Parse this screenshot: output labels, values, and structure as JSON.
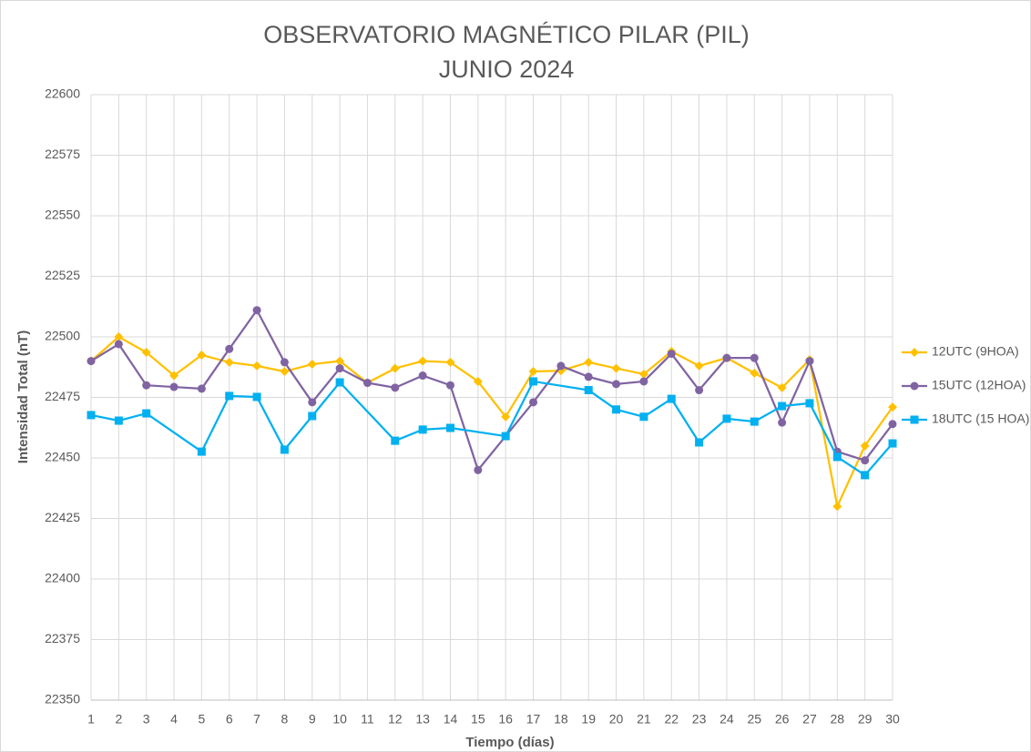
{
  "chart_data": {
    "type": "line",
    "title": "OBSERVATORIO MAGNÉTICO PILAR (PIL)",
    "subtitle": "JUNIO 2024",
    "x_label": "Tiempo (días)",
    "y_label": "Intensidad Total (nT)",
    "x": [
      1,
      2,
      3,
      4,
      5,
      6,
      7,
      8,
      9,
      10,
      11,
      12,
      13,
      14,
      15,
      16,
      17,
      18,
      19,
      20,
      21,
      22,
      23,
      24,
      25,
      26,
      27,
      28,
      29,
      30
    ],
    "xlim": [
      1,
      30
    ],
    "xticks": [
      1,
      2,
      3,
      4,
      5,
      6,
      7,
      8,
      9,
      10,
      11,
      12,
      13,
      14,
      15,
      16,
      17,
      18,
      19,
      20,
      21,
      22,
      23,
      24,
      25,
      26,
      27,
      28,
      29,
      30
    ],
    "ylim": [
      22350,
      22600
    ],
    "yticks": [
      22350,
      22375,
      22400,
      22425,
      22450,
      22475,
      22500,
      22525,
      22550,
      22575,
      22600
    ],
    "grid": true,
    "legend": "right",
    "series": [
      {
        "name": "12UTC (9HOA)",
        "color": "#ffc000",
        "marker": "diamond",
        "values": [
          22490,
          22500,
          22493.6,
          22484,
          22492.5,
          22489.5,
          22488,
          22485.7,
          22488.7,
          22490,
          22481,
          22487,
          22490,
          22489.5,
          22481.6,
          22467,
          22485.7,
          22486,
          22489.5,
          22487,
          22484.6,
          22494,
          22488,
          22491.3,
          22485,
          22479,
          22490.6,
          22430,
          22455,
          22471
        ]
      },
      {
        "name": "15UTC (12HOA)",
        "color": "#8064a2",
        "marker": "circle",
        "values": [
          22490,
          22497,
          22480,
          22479.3,
          22478.6,
          22495,
          22511,
          22489.5,
          22473,
          22487,
          22481,
          22479,
          22484,
          22480,
          22445,
          22459,
          22473,
          22488,
          22483.5,
          22480.5,
          22481.6,
          22493,
          22478,
          22491.3,
          22491.3,
          22464.6,
          22490,
          22452.6,
          22449,
          22464
        ]
      },
      {
        "name": "18UTC (15 HOA)",
        "color": "#00b0f0",
        "marker": "square",
        "x": [
          1,
          2,
          3,
          5,
          6,
          7,
          8,
          9,
          10,
          12,
          13,
          14,
          16,
          17,
          19,
          20,
          21,
          22,
          23,
          24,
          25,
          26,
          27,
          28,
          29,
          30
        ],
        "values": [
          22467.7,
          22465.4,
          22468.4,
          22452.6,
          22475.6,
          22475.2,
          22453.4,
          22467.3,
          22481.2,
          22457.1,
          22461.7,
          22462.4,
          22459,
          22481.6,
          22478,
          22470,
          22467,
          22474.4,
          22456.4,
          22466.2,
          22465,
          22471.4,
          22472.6,
          22450.4,
          22442.9,
          22456
        ]
      }
    ]
  }
}
